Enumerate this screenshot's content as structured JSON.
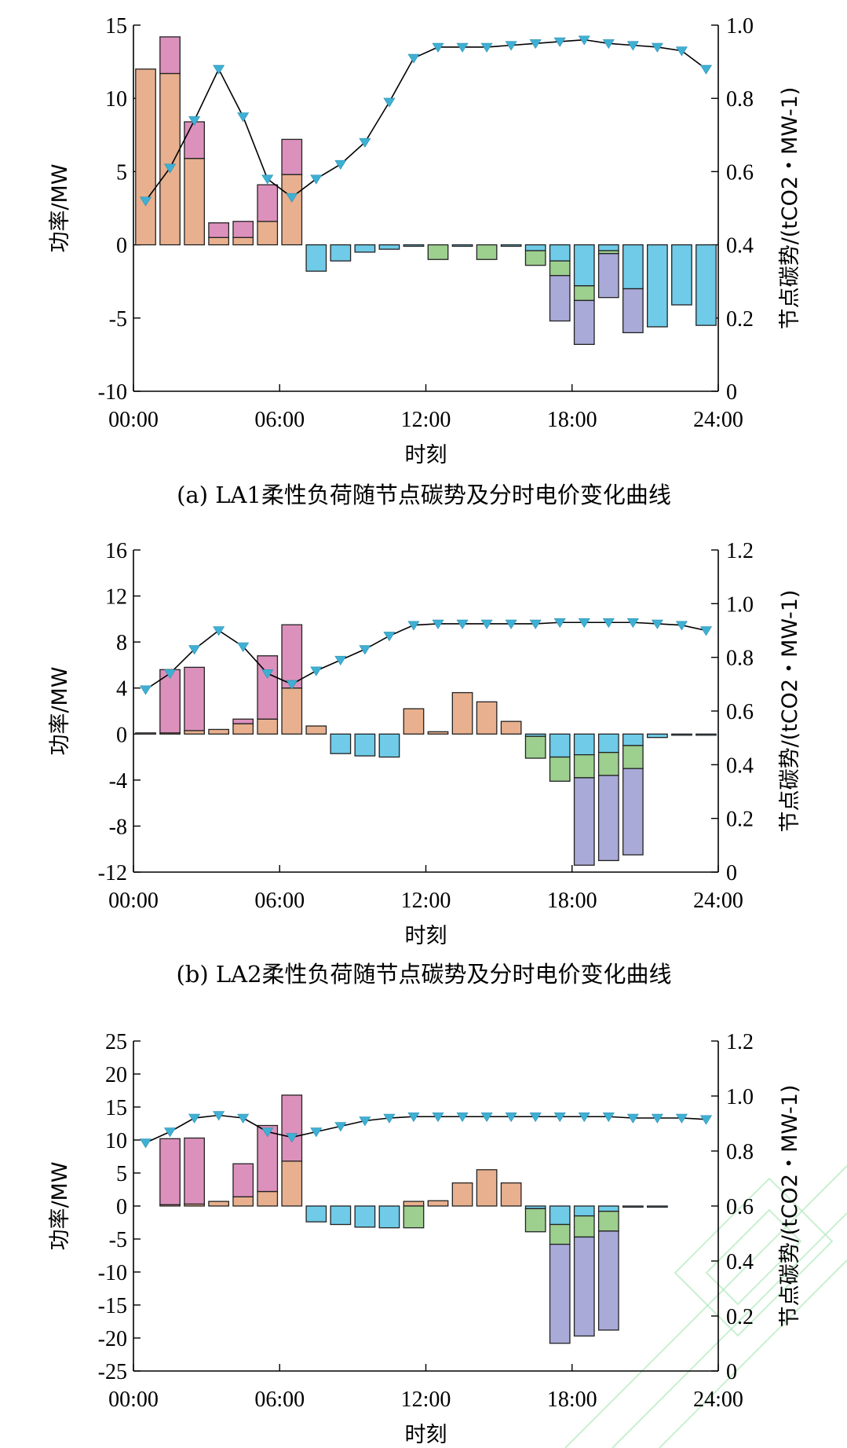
{
  "colors": {
    "segA": "#e8b08e",
    "segB": "#dc91bc",
    "segC": "#6fcbe8",
    "segD": "#9dcf8f",
    "segE": "#a9aad8",
    "line": "#000000",
    "marker": "#3fb0d4"
  },
  "chart_data": [
    {
      "type": "bar",
      "caption": "(a) LA1柔性负荷随节点碳势及分时电价变化曲线",
      "xlabel": "时刻",
      "ylabel": "功率/MW",
      "y2label": "节点碳势/(tCO2・MW-1)",
      "x_ticks": [
        "00:00",
        "06:00",
        "12:00",
        "18:00",
        "24:00"
      ],
      "ylim": [
        -10,
        15
      ],
      "y_ticks": [
        "-10",
        "-5",
        "0",
        "5",
        "10",
        "15"
      ],
      "y2lim": [
        0,
        1.0
      ],
      "y2_ticks": [
        "0",
        "0.2",
        "0.4",
        "0.6",
        "0.8",
        "1.0"
      ],
      "stacks": [
        {
          "hour": 1,
          "pos": [
            [
              "segA",
              12.0
            ]
          ],
          "neg": []
        },
        {
          "hour": 2,
          "pos": [
            [
              "segA",
              11.7
            ],
            [
              "segB",
              2.5
            ]
          ],
          "neg": []
        },
        {
          "hour": 3,
          "pos": [
            [
              "segA",
              5.9
            ],
            [
              "segB",
              2.5
            ]
          ],
          "neg": []
        },
        {
          "hour": 4,
          "pos": [
            [
              "segA",
              0.5
            ],
            [
              "segB",
              1.0
            ]
          ],
          "neg": []
        },
        {
          "hour": 5,
          "pos": [
            [
              "segA",
              0.5
            ],
            [
              "segB",
              1.1
            ]
          ],
          "neg": []
        },
        {
          "hour": 6,
          "pos": [
            [
              "segA",
              1.6
            ],
            [
              "segB",
              2.5
            ]
          ],
          "neg": []
        },
        {
          "hour": 7,
          "pos": [
            [
              "segA",
              4.8
            ],
            [
              "segB",
              2.4
            ]
          ],
          "neg": []
        },
        {
          "hour": 8,
          "pos": [],
          "neg": [
            [
              "segC",
              1.8
            ]
          ]
        },
        {
          "hour": 9,
          "pos": [],
          "neg": [
            [
              "segC",
              1.1
            ]
          ]
        },
        {
          "hour": 10,
          "pos": [],
          "neg": [
            [
              "segC",
              0.5
            ]
          ]
        },
        {
          "hour": 11,
          "pos": [],
          "neg": [
            [
              "segC",
              0.3
            ]
          ]
        },
        {
          "hour": 12,
          "pos": [],
          "neg": [
            [
              "segC",
              0.1
            ]
          ]
        },
        {
          "hour": 13,
          "pos": [],
          "neg": [
            [
              "segD",
              1.0
            ]
          ]
        },
        {
          "hour": 14,
          "pos": [],
          "neg": [
            [
              "segC",
              0.1
            ]
          ]
        },
        {
          "hour": 15,
          "pos": [],
          "neg": [
            [
              "segD",
              1.0
            ]
          ]
        },
        {
          "hour": 16,
          "pos": [],
          "neg": [
            [
              "segC",
              0.1
            ]
          ]
        },
        {
          "hour": 17,
          "pos": [],
          "neg": [
            [
              "segC",
              0.4
            ],
            [
              "segD",
              1.0
            ]
          ]
        },
        {
          "hour": 18,
          "pos": [],
          "neg": [
            [
              "segC",
              1.1
            ],
            [
              "segD",
              1.0
            ],
            [
              "segE",
              3.1
            ]
          ]
        },
        {
          "hour": 19,
          "pos": [],
          "neg": [
            [
              "segC",
              2.8
            ],
            [
              "segD",
              1.0
            ],
            [
              "segE",
              3.0
            ]
          ]
        },
        {
          "hour": 20,
          "pos": [],
          "neg": [
            [
              "segC",
              0.4
            ],
            [
              "segD",
              0.2
            ],
            [
              "segE",
              3.0
            ]
          ]
        },
        {
          "hour": 21,
          "pos": [],
          "neg": [
            [
              "segC",
              3.0
            ],
            [
              "segE",
              3.0
            ]
          ]
        },
        {
          "hour": 22,
          "pos": [],
          "neg": [
            [
              "segC",
              5.6
            ]
          ]
        },
        {
          "hour": 23,
          "pos": [],
          "neg": [
            [
              "segC",
              4.1
            ]
          ]
        },
        {
          "hour": 24,
          "pos": [],
          "neg": [
            [
              "segC",
              5.5
            ]
          ]
        }
      ],
      "carbon_curve": {
        "hours": [
          1,
          2,
          3,
          4,
          5,
          6,
          7,
          8,
          9,
          10,
          11,
          12,
          13,
          14,
          15,
          16,
          17,
          18,
          19,
          20,
          21,
          22,
          23,
          24
        ],
        "values": [
          0.52,
          0.61,
          0.74,
          0.88,
          0.75,
          0.58,
          0.53,
          0.58,
          0.62,
          0.68,
          0.79,
          0.91,
          0.94,
          0.94,
          0.94,
          0.945,
          0.95,
          0.955,
          0.96,
          0.95,
          0.945,
          0.94,
          0.93,
          0.88
        ]
      }
    },
    {
      "type": "bar",
      "caption": "(b) LA2柔性负荷随节点碳势及分时电价变化曲线",
      "xlabel": "时刻",
      "ylabel": "功率/MW",
      "y2label": "节点碳势/(tCO2・MW-1)",
      "x_ticks": [
        "00:00",
        "06:00",
        "12:00",
        "18:00",
        "24:00"
      ],
      "ylim": [
        -12,
        16
      ],
      "y_ticks": [
        "-12",
        "-8",
        "-4",
        "0",
        "4",
        "8",
        "12",
        "16"
      ],
      "y2lim": [
        0,
        1.2
      ],
      "y2_ticks": [
        "0",
        "0.2",
        "0.4",
        "0.6",
        "0.8",
        "1.0",
        "1.2"
      ],
      "stacks": [
        {
          "hour": 1,
          "pos": [
            [
              "segA",
              0.1
            ]
          ],
          "neg": []
        },
        {
          "hour": 2,
          "pos": [
            [
              "segA",
              0.1
            ],
            [
              "segB",
              5.5
            ]
          ],
          "neg": []
        },
        {
          "hour": 3,
          "pos": [
            [
              "segA",
              0.3
            ],
            [
              "segB",
              5.5
            ]
          ],
          "neg": []
        },
        {
          "hour": 4,
          "pos": [
            [
              "segA",
              0.4
            ]
          ],
          "neg": []
        },
        {
          "hour": 5,
          "pos": [
            [
              "segA",
              0.9
            ],
            [
              "segB",
              0.4
            ]
          ],
          "neg": []
        },
        {
          "hour": 6,
          "pos": [
            [
              "segA",
              1.3
            ],
            [
              "segB",
              5.5
            ]
          ],
          "neg": []
        },
        {
          "hour": 7,
          "pos": [
            [
              "segA",
              4.0
            ],
            [
              "segB",
              5.5
            ]
          ],
          "neg": []
        },
        {
          "hour": 8,
          "pos": [
            [
              "segA",
              0.7
            ]
          ],
          "neg": []
        },
        {
          "hour": 9,
          "pos": [],
          "neg": [
            [
              "segC",
              1.7
            ]
          ]
        },
        {
          "hour": 10,
          "pos": [],
          "neg": [
            [
              "segC",
              1.9
            ]
          ]
        },
        {
          "hour": 11,
          "pos": [],
          "neg": [
            [
              "segC",
              2.0
            ]
          ]
        },
        {
          "hour": 12,
          "pos": [
            [
              "segA",
              2.2
            ]
          ],
          "neg": []
        },
        {
          "hour": 13,
          "pos": [
            [
              "segA",
              0.2
            ]
          ],
          "neg": []
        },
        {
          "hour": 14,
          "pos": [
            [
              "segA",
              3.6
            ]
          ],
          "neg": []
        },
        {
          "hour": 15,
          "pos": [
            [
              "segA",
              2.8
            ]
          ],
          "neg": []
        },
        {
          "hour": 16,
          "pos": [
            [
              "segA",
              1.1
            ]
          ],
          "neg": []
        },
        {
          "hour": 17,
          "pos": [],
          "neg": [
            [
              "segC",
              0.2
            ],
            [
              "segD",
              1.9
            ]
          ]
        },
        {
          "hour": 18,
          "pos": [],
          "neg": [
            [
              "segC",
              2.0
            ],
            [
              "segD",
              2.1
            ]
          ]
        },
        {
          "hour": 19,
          "pos": [],
          "neg": [
            [
              "segC",
              1.8
            ],
            [
              "segD",
              2.0
            ],
            [
              "segE",
              7.6
            ]
          ]
        },
        {
          "hour": 20,
          "pos": [],
          "neg": [
            [
              "segC",
              1.6
            ],
            [
              "segD",
              2.0
            ],
            [
              "segE",
              7.4
            ]
          ]
        },
        {
          "hour": 21,
          "pos": [],
          "neg": [
            [
              "segC",
              1.0
            ],
            [
              "segD",
              2.0
            ],
            [
              "segE",
              7.5
            ]
          ]
        },
        {
          "hour": 22,
          "pos": [],
          "neg": [
            [
              "segC",
              0.3
            ]
          ]
        },
        {
          "hour": 23,
          "pos": [],
          "neg": [
            [
              "segC",
              0.1
            ]
          ]
        },
        {
          "hour": 24,
          "pos": [],
          "neg": [
            [
              "segC",
              0.1
            ]
          ]
        }
      ],
      "carbon_curve": {
        "hours": [
          1,
          2,
          3,
          4,
          5,
          6,
          7,
          8,
          9,
          10,
          11,
          12,
          13,
          14,
          15,
          16,
          17,
          18,
          19,
          20,
          21,
          22,
          23,
          24
        ],
        "values": [
          0.68,
          0.74,
          0.83,
          0.9,
          0.84,
          0.74,
          0.7,
          0.75,
          0.79,
          0.83,
          0.88,
          0.92,
          0.925,
          0.925,
          0.925,
          0.925,
          0.925,
          0.93,
          0.93,
          0.93,
          0.93,
          0.925,
          0.92,
          0.9
        ]
      }
    },
    {
      "type": "bar",
      "caption": "",
      "xlabel": "时刻",
      "ylabel": "功率/MW",
      "y2label": "节点碳势/(tCO2・MW-1)",
      "x_ticks": [
        "00:00",
        "06:00",
        "12:00",
        "18:00",
        "24:00"
      ],
      "ylim": [
        -25,
        25
      ],
      "y_ticks": [
        "-25",
        "-20",
        "-15",
        "-10",
        "-5",
        "0",
        "5",
        "10",
        "15",
        "20",
        "25"
      ],
      "y2lim": [
        0,
        1.2
      ],
      "y2_ticks": [
        "0",
        "0.2",
        "0.4",
        "0.6",
        "0.8",
        "1.0",
        "1.2"
      ],
      "stacks": [
        {
          "hour": 1,
          "pos": [],
          "neg": []
        },
        {
          "hour": 2,
          "pos": [
            [
              "segA",
              0.2
            ],
            [
              "segB",
              10.0
            ]
          ],
          "neg": []
        },
        {
          "hour": 3,
          "pos": [
            [
              "segA",
              0.3
            ],
            [
              "segB",
              10.0
            ]
          ],
          "neg": []
        },
        {
          "hour": 4,
          "pos": [
            [
              "segA",
              0.7
            ]
          ],
          "neg": []
        },
        {
          "hour": 5,
          "pos": [
            [
              "segA",
              1.4
            ],
            [
              "segB",
              5.0
            ]
          ],
          "neg": []
        },
        {
          "hour": 6,
          "pos": [
            [
              "segA",
              2.2
            ],
            [
              "segB",
              10.0
            ]
          ],
          "neg": []
        },
        {
          "hour": 7,
          "pos": [
            [
              "segA",
              6.8
            ],
            [
              "segB",
              10.0
            ]
          ],
          "neg": []
        },
        {
          "hour": 8,
          "pos": [],
          "neg": [
            [
              "segC",
              2.4
            ]
          ]
        },
        {
          "hour": 9,
          "pos": [],
          "neg": [
            [
              "segC",
              2.8
            ]
          ]
        },
        {
          "hour": 10,
          "pos": [],
          "neg": [
            [
              "segC",
              3.2
            ]
          ]
        },
        {
          "hour": 11,
          "pos": [],
          "neg": [
            [
              "segC",
              3.3
            ]
          ]
        },
        {
          "hour": 12,
          "pos": [
            [
              "segA",
              0.7
            ]
          ],
          "neg": [
            [
              "segD",
              3.3
            ]
          ]
        },
        {
          "hour": 13,
          "pos": [
            [
              "segA",
              0.8
            ]
          ],
          "neg": []
        },
        {
          "hour": 14,
          "pos": [
            [
              "segA",
              3.5
            ]
          ],
          "neg": []
        },
        {
          "hour": 15,
          "pos": [
            [
              "segA",
              5.5
            ]
          ],
          "neg": []
        },
        {
          "hour": 16,
          "pos": [
            [
              "segA",
              3.5
            ]
          ],
          "neg": []
        },
        {
          "hour": 17,
          "pos": [],
          "neg": [
            [
              "segC",
              0.4
            ],
            [
              "segD",
              3.5
            ]
          ]
        },
        {
          "hour": 18,
          "pos": [],
          "neg": [
            [
              "segC",
              2.8
            ],
            [
              "segD",
              3.0
            ],
            [
              "segE",
              15.0
            ]
          ]
        },
        {
          "hour": 19,
          "pos": [],
          "neg": [
            [
              "segC",
              1.5
            ],
            [
              "segD",
              3.2
            ],
            [
              "segE",
              15.0
            ]
          ]
        },
        {
          "hour": 20,
          "pos": [],
          "neg": [
            [
              "segC",
              0.8
            ],
            [
              "segD",
              3.0
            ],
            [
              "segE",
              15.0
            ]
          ]
        },
        {
          "hour": 21,
          "pos": [],
          "neg": [
            [
              "segC",
              0.1
            ]
          ]
        },
        {
          "hour": 22,
          "pos": [],
          "neg": [
            [
              "segC",
              0.1
            ]
          ]
        },
        {
          "hour": 23,
          "pos": [],
          "neg": []
        },
        {
          "hour": 24,
          "pos": [],
          "neg": []
        }
      ],
      "carbon_curve": {
        "hours": [
          1,
          2,
          3,
          4,
          5,
          6,
          7,
          8,
          9,
          10,
          11,
          12,
          13,
          14,
          15,
          16,
          17,
          18,
          19,
          20,
          21,
          22,
          23,
          24
        ],
        "values": [
          0.83,
          0.87,
          0.92,
          0.93,
          0.92,
          0.87,
          0.85,
          0.87,
          0.89,
          0.91,
          0.92,
          0.925,
          0.925,
          0.925,
          0.925,
          0.925,
          0.925,
          0.925,
          0.925,
          0.925,
          0.92,
          0.92,
          0.92,
          0.915
        ]
      }
    }
  ]
}
